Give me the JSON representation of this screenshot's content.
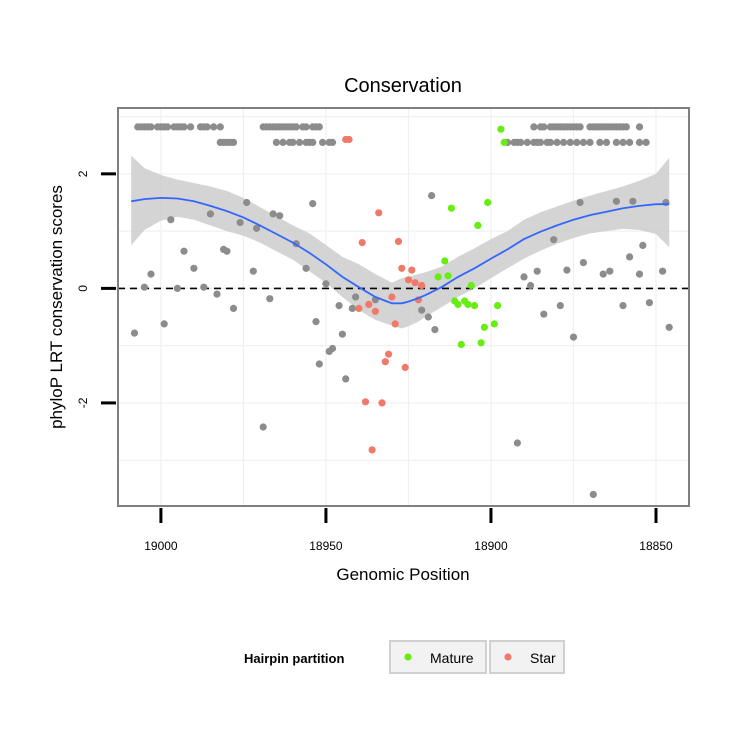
{
  "chart_data": {
    "type": "scatter",
    "title": "Conservation",
    "xlabel": "Genomic Position",
    "ylabel": "phyloP LRT conservation scores",
    "x_reversed": true,
    "xlim": [
      19013,
      18840
    ],
    "ylim": [
      -3.8,
      3.15
    ],
    "x_ticks": [
      19000,
      18950,
      18900,
      18850
    ],
    "y_ticks": [
      -2,
      0,
      2
    ],
    "reference_line": {
      "y": 0,
      "style": "dashed"
    },
    "legend": {
      "title": "Hairpin partition",
      "position": "bottom",
      "entries": [
        {
          "label": "Mature",
          "color": "#66ee11"
        },
        {
          "label": "Star",
          "color": "#f07a6a"
        }
      ]
    },
    "colors": {
      "other": "#8c8c8c",
      "smooth_line": "#3366ff",
      "ribbon": "#cccccc",
      "panel_border": "#7f7f7f",
      "grid": "#f0f0f0"
    },
    "series": [
      {
        "name": "Other",
        "points": [
          [
            19008,
            -0.78
          ],
          [
            19005,
            0.02
          ],
          [
            19003,
            0.25
          ],
          [
            18999,
            -0.62
          ],
          [
            18997,
            1.2
          ],
          [
            18995,
            0
          ],
          [
            18993,
            0.65
          ],
          [
            18990,
            0.35
          ],
          [
            18987,
            0.02
          ],
          [
            18985,
            1.3
          ],
          [
            18983,
            -0.1
          ],
          [
            18981,
            0.68
          ],
          [
            18980,
            0.65
          ],
          [
            18978,
            -0.35
          ],
          [
            18976,
            1.15
          ],
          [
            18974,
            1.5
          ],
          [
            18972,
            0.3
          ],
          [
            18971,
            1.05
          ],
          [
            18969,
            -2.42
          ],
          [
            18967,
            -0.18
          ],
          [
            18966,
            1.3
          ],
          [
            18964,
            1.27
          ],
          [
            18959,
            0.78
          ],
          [
            18956,
            0.35
          ],
          [
            18954,
            1.48
          ],
          [
            18953,
            -0.58
          ],
          [
            18952,
            -1.32
          ],
          [
            18950,
            0.08
          ],
          [
            18949,
            -1.1
          ],
          [
            18948,
            -1.05
          ],
          [
            18946,
            -0.3
          ],
          [
            18945,
            -0.8
          ],
          [
            18944,
            -1.58
          ],
          [
            18942,
            -0.35
          ],
          [
            18941,
            -0.15
          ],
          [
            18935,
            -0.2
          ],
          [
            18921,
            -0.38
          ],
          [
            18919,
            -0.5
          ],
          [
            18918,
            1.62
          ],
          [
            18917,
            -0.72
          ],
          [
            18892,
            -2.7
          ],
          [
            18890,
            0.2
          ],
          [
            18888,
            0.05
          ],
          [
            18886,
            0.3
          ],
          [
            18884,
            -0.45
          ],
          [
            18881,
            0.85
          ],
          [
            18879,
            -0.3
          ],
          [
            18877,
            0.32
          ],
          [
            18875,
            -0.85
          ],
          [
            18873,
            1.5
          ],
          [
            18872,
            0.45
          ],
          [
            18869,
            -3.6
          ],
          [
            18866,
            0.25
          ],
          [
            18864,
            0.3
          ],
          [
            18862,
            1.52
          ],
          [
            18860,
            -0.3
          ],
          [
            18858,
            0.55
          ],
          [
            18857,
            1.52
          ],
          [
            18855,
            0.25
          ],
          [
            18854,
            0.75
          ],
          [
            18852,
            -0.25
          ],
          [
            18848,
            0.3
          ],
          [
            18847,
            1.5
          ],
          [
            18846,
            -0.68
          ]
        ]
      },
      {
        "name": "Mature",
        "points": [
          [
            18916,
            0.2
          ],
          [
            18914,
            0.48
          ],
          [
            18913,
            0.22
          ],
          [
            18912,
            1.4
          ],
          [
            18911,
            -0.22
          ],
          [
            18910,
            -0.28
          ],
          [
            18909,
            -0.98
          ],
          [
            18908,
            -0.22
          ],
          [
            18907,
            -0.28
          ],
          [
            18906,
            0.05
          ],
          [
            18905,
            -0.3
          ],
          [
            18904,
            1.1
          ],
          [
            18903,
            -0.95
          ],
          [
            18902,
            -0.68
          ],
          [
            18901,
            1.5
          ],
          [
            18899,
            -0.62
          ],
          [
            18898,
            -0.3
          ],
          [
            18897,
            2.78
          ],
          [
            18896,
            2.55
          ]
        ]
      },
      {
        "name": "Star",
        "points": [
          [
            18944,
            2.6
          ],
          [
            18943,
            2.6
          ],
          [
            18940,
            -0.35
          ],
          [
            18939,
            0.8
          ],
          [
            18938,
            -1.98
          ],
          [
            18937,
            -0.28
          ],
          [
            18936,
            -2.82
          ],
          [
            18935,
            -0.4
          ],
          [
            18934,
            1.32
          ],
          [
            18933,
            -2.0
          ],
          [
            18932,
            -1.28
          ],
          [
            18931,
            -1.15
          ],
          [
            18930,
            -0.15
          ],
          [
            18929,
            -0.62
          ],
          [
            18928,
            0.82
          ],
          [
            18927,
            0.35
          ],
          [
            18926,
            -1.38
          ],
          [
            18925,
            0.15
          ],
          [
            18924,
            0.32
          ],
          [
            18923,
            0.1
          ],
          [
            18922,
            -0.2
          ],
          [
            18921,
            0.05
          ]
        ]
      }
    ],
    "top_points": {
      "rows": [
        2.82,
        2.55
      ],
      "row_high_x": [
        19007,
        19006,
        19005,
        19004,
        19003,
        19001,
        19000,
        18999,
        18998,
        18996,
        18995,
        18994,
        18993,
        18991,
        18988,
        18987,
        18986,
        18984,
        18982,
        18969,
        18968,
        18967,
        18966,
        18965,
        18964,
        18963,
        18962,
        18961,
        18960,
        18959,
        18957,
        18956,
        18954,
        18953,
        18952,
        18887,
        18885,
        18884,
        18882,
        18881,
        18880,
        18879,
        18878,
        18877,
        18876,
        18875,
        18874,
        18873,
        18870,
        18869,
        18868,
        18867,
        18866,
        18865,
        18864,
        18863,
        18862,
        18861,
        18860,
        18859,
        18855
      ],
      "row_low_x": [
        18982,
        18981,
        18980,
        18979,
        18978,
        18965,
        18963,
        18961,
        18960,
        18958,
        18956,
        18955,
        18954,
        18951,
        18949,
        18948,
        18895,
        18893,
        18892,
        18891,
        18889,
        18887,
        18886,
        18885,
        18883,
        18882,
        18880,
        18878,
        18876,
        18874,
        18872,
        18870,
        18867,
        18865,
        18862,
        18860,
        18858,
        18855,
        18853
      ]
    },
    "smooth": {
      "x": [
        19009,
        19005,
        19000,
        18995,
        18990,
        18985,
        18980,
        18975,
        18970,
        18965,
        18960,
        18955,
        18950,
        18945,
        18940,
        18935,
        18930,
        18927,
        18925,
        18922,
        18920,
        18915,
        18910,
        18905,
        18900,
        18895,
        18890,
        18885,
        18880,
        18875,
        18870,
        18865,
        18860,
        18855,
        18850,
        18846
      ],
      "y": [
        1.52,
        1.56,
        1.58,
        1.57,
        1.52,
        1.44,
        1.35,
        1.24,
        1.1,
        0.95,
        0.8,
        0.62,
        0.42,
        0.2,
        0.02,
        -0.15,
        -0.26,
        -0.26,
        -0.23,
        -0.17,
        -0.12,
        0.02,
        0.2,
        0.35,
        0.52,
        0.68,
        0.86,
        0.99,
        1.1,
        1.2,
        1.28,
        1.34,
        1.4,
        1.44,
        1.47,
        1.47
      ],
      "lower": [
        0.75,
        1.02,
        1.18,
        1.25,
        1.2,
        1.1,
        1.0,
        0.92,
        0.8,
        0.65,
        0.5,
        0.3,
        0.1,
        -0.15,
        -0.38,
        -0.55,
        -0.65,
        -0.7,
        -0.66,
        -0.58,
        -0.5,
        -0.33,
        -0.15,
        0.0,
        0.18,
        0.35,
        0.52,
        0.66,
        0.78,
        0.88,
        0.96,
        1.0,
        1.04,
        1.02,
        0.95,
        0.72
      ],
      "upper": [
        2.32,
        2.1,
        1.98,
        1.9,
        1.84,
        1.78,
        1.7,
        1.58,
        1.42,
        1.26,
        1.1,
        0.96,
        0.76,
        0.55,
        0.42,
        0.25,
        0.1,
        0.18,
        0.2,
        0.25,
        0.28,
        0.38,
        0.55,
        0.7,
        0.86,
        1.0,
        1.2,
        1.33,
        1.43,
        1.53,
        1.62,
        1.7,
        1.78,
        1.88,
        2.0,
        2.28
      ]
    }
  }
}
